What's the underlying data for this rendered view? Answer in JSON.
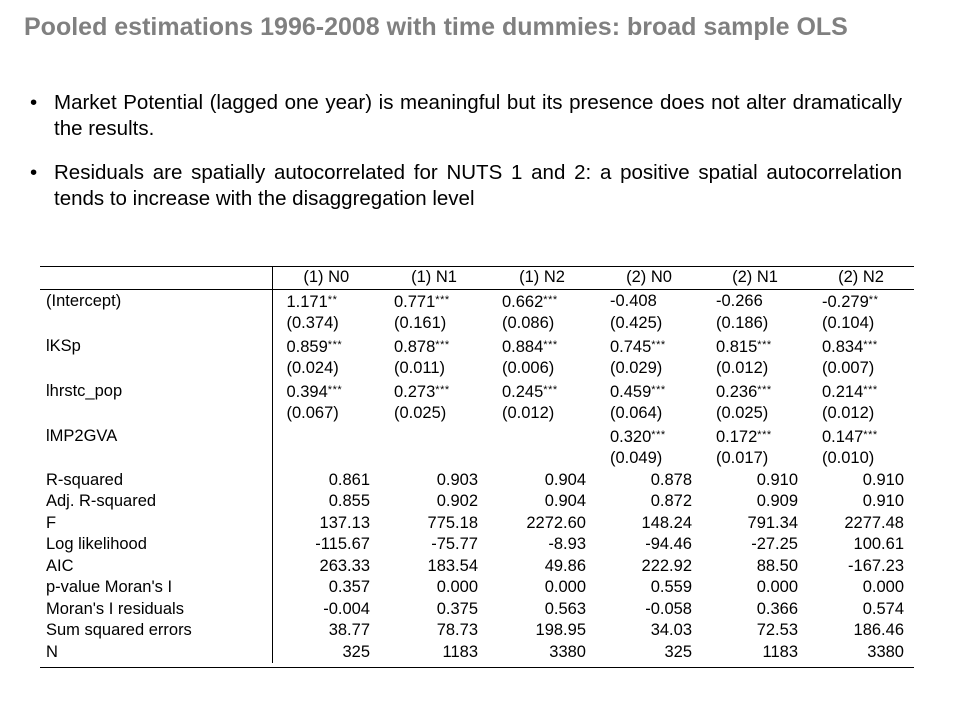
{
  "title": "Pooled estimations 1996-2008 with time dummies: broad sample OLS",
  "bullets": [
    "Market Potential (lagged one year) is meaningful but its presence does not alter dramatically the results.",
    "Residuals are spatially autocorrelated for NUTS 1 and 2: a positive spatial autocorrelation tends to increase with the disaggregation level"
  ],
  "table": {
    "headers": [
      "(1) N0",
      "(1) N1",
      "(1) N2",
      "(2) N0",
      "(2) N1",
      "(2) N2"
    ],
    "coef_rows": [
      {
        "label": "(Intercept)",
        "cells": [
          {
            "v": "1.171",
            "s": "**"
          },
          {
            "v": "0.771",
            "s": "***"
          },
          {
            "v": "0.662",
            "s": "***"
          },
          {
            "v": "-0.408",
            "s": ""
          },
          {
            "v": "-0.266",
            "s": ""
          },
          {
            "v": "-0.279",
            "s": "**"
          }
        ]
      },
      {
        "label": "",
        "cells": [
          {
            "v": "(0.374)",
            "s": ""
          },
          {
            "v": "(0.161)",
            "s": ""
          },
          {
            "v": "(0.086)",
            "s": ""
          },
          {
            "v": "(0.425)",
            "s": ""
          },
          {
            "v": "(0.186)",
            "s": ""
          },
          {
            "v": "(0.104)",
            "s": ""
          }
        ]
      },
      {
        "label": "lKSp",
        "cells": [
          {
            "v": "0.859",
            "s": "***"
          },
          {
            "v": "0.878",
            "s": "***"
          },
          {
            "v": "0.884",
            "s": "***"
          },
          {
            "v": "0.745",
            "s": "***"
          },
          {
            "v": "0.815",
            "s": "***"
          },
          {
            "v": "0.834",
            "s": "***"
          }
        ]
      },
      {
        "label": "",
        "cells": [
          {
            "v": "(0.024)",
            "s": ""
          },
          {
            "v": "(0.011)",
            "s": ""
          },
          {
            "v": "(0.006)",
            "s": ""
          },
          {
            "v": "(0.029)",
            "s": ""
          },
          {
            "v": "(0.012)",
            "s": ""
          },
          {
            "v": "(0.007)",
            "s": ""
          }
        ]
      },
      {
        "label": "lhrstc_pop",
        "cells": [
          {
            "v": "0.394",
            "s": "***"
          },
          {
            "v": "0.273",
            "s": "***"
          },
          {
            "v": "0.245",
            "s": "***"
          },
          {
            "v": "0.459",
            "s": "***"
          },
          {
            "v": "0.236",
            "s": "***"
          },
          {
            "v": "0.214",
            "s": "***"
          }
        ]
      },
      {
        "label": "",
        "cells": [
          {
            "v": "(0.067)",
            "s": ""
          },
          {
            "v": "(0.025)",
            "s": ""
          },
          {
            "v": "(0.012)",
            "s": ""
          },
          {
            "v": "(0.064)",
            "s": ""
          },
          {
            "v": "(0.025)",
            "s": ""
          },
          {
            "v": "(0.012)",
            "s": ""
          }
        ]
      },
      {
        "label": "lMP2GVA",
        "cells": [
          {
            "v": "",
            "s": ""
          },
          {
            "v": "",
            "s": ""
          },
          {
            "v": "",
            "s": ""
          },
          {
            "v": "0.320",
            "s": "***"
          },
          {
            "v": "0.172",
            "s": "***"
          },
          {
            "v": "0.147",
            "s": "***"
          }
        ]
      },
      {
        "label": "",
        "cells": [
          {
            "v": "",
            "s": ""
          },
          {
            "v": "",
            "s": ""
          },
          {
            "v": "",
            "s": ""
          },
          {
            "v": "(0.049)",
            "s": ""
          },
          {
            "v": "(0.017)",
            "s": ""
          },
          {
            "v": "(0.010)",
            "s": ""
          }
        ]
      }
    ],
    "stat_rows": [
      {
        "label": "R-squared",
        "values": [
          "0.861",
          "0.903",
          "0.904",
          "0.878",
          "0.910",
          "0.910"
        ]
      },
      {
        "label": "Adj. R-squared",
        "values": [
          "0.855",
          "0.902",
          "0.904",
          "0.872",
          "0.909",
          "0.910"
        ]
      },
      {
        "label": "F",
        "values": [
          "137.13",
          "775.18",
          "2272.60",
          "148.24",
          "791.34",
          "2277.48"
        ]
      },
      {
        "label": "Log likelihood",
        "values": [
          "-115.67",
          "-75.77",
          "-8.93",
          "-94.46",
          "-27.25",
          "100.61"
        ]
      },
      {
        "label": "AIC",
        "values": [
          "263.33",
          "183.54",
          "49.86",
          "222.92",
          "88.50",
          "-167.23"
        ]
      },
      {
        "label": "p-value Moran's I",
        "values": [
          "0.357",
          "0.000",
          "0.000",
          "0.559",
          "0.000",
          "0.000"
        ]
      },
      {
        "label": "Moran's I residuals",
        "values": [
          "-0.004",
          "0.375",
          "0.563",
          "-0.058",
          "0.366",
          "0.574"
        ]
      },
      {
        "label": "Sum squared errors",
        "values": [
          "38.77",
          "78.73",
          "198.95",
          "34.03",
          "72.53",
          "186.46"
        ]
      },
      {
        "label": "N",
        "values": [
          "325",
          "1183",
          "3380",
          "325",
          "1183",
          "3380"
        ]
      }
    ]
  }
}
